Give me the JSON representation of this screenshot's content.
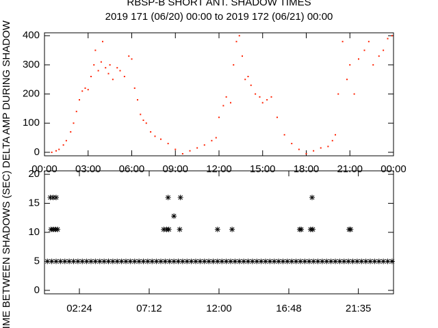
{
  "chart_data": [
    {
      "type": "scatter",
      "title": "RBSP-B SHORT ANT. SHADOW TIMES",
      "subtitle": "2019 171 (06/20) 00:00 to 2019 172 (06/21) 00:00",
      "y_label": "DELTA AMP DURING SHADOW",
      "color": "#ff2000",
      "x": [
        0.5,
        0.8,
        1.0,
        1.3,
        1.5,
        1.8,
        2.0,
        2.2,
        2.4,
        2.6,
        2.8,
        3.0,
        3.2,
        3.4,
        3.5,
        3.7,
        3.9,
        4.0,
        4.2,
        4.4,
        4.5,
        4.7,
        5.0,
        5.2,
        5.5,
        5.8,
        6.0,
        6.2,
        6.4,
        6.6,
        6.8,
        7.0,
        7.3,
        7.6,
        8.0,
        8.5,
        9.0,
        9.5,
        10.0,
        10.5,
        11.0,
        11.5,
        11.8,
        12.0,
        12.3,
        12.5,
        12.8,
        13.0,
        13.2,
        13.4,
        13.6,
        13.8,
        14.0,
        14.2,
        14.5,
        14.8,
        15.0,
        15.3,
        15.6,
        16.0,
        16.5,
        17.0,
        17.5,
        18.0,
        18.5,
        19.0,
        19.5,
        19.8,
        20.0,
        20.2,
        20.5,
        20.8,
        21.0,
        21.3,
        21.6,
        22.0,
        22.3,
        22.6,
        23.0,
        23.3,
        23.6,
        23.9
      ],
      "values": [
        0,
        5,
        10,
        25,
        40,
        70,
        100,
        140,
        180,
        210,
        220,
        215,
        260,
        300,
        350,
        280,
        310,
        380,
        290,
        270,
        300,
        250,
        290,
        280,
        260,
        330,
        320,
        220,
        180,
        130,
        110,
        100,
        70,
        55,
        45,
        30,
        10,
        -5,
        5,
        15,
        25,
        40,
        50,
        120,
        160,
        190,
        170,
        300,
        380,
        400,
        330,
        250,
        260,
        230,
        200,
        190,
        170,
        180,
        190,
        120,
        60,
        30,
        10,
        -5,
        5,
        15,
        20,
        40,
        60,
        200,
        380,
        250,
        300,
        200,
        320,
        350,
        380,
        300,
        330,
        350,
        390,
        400
      ],
      "xlim": [
        0,
        24
      ],
      "ylim": [
        -12,
        410
      ],
      "xticks": [
        {
          "value": 0,
          "label": "00:00"
        },
        {
          "value": 3,
          "label": "03:00"
        },
        {
          "value": 6,
          "label": "06:00"
        },
        {
          "value": 9,
          "label": "09:00"
        },
        {
          "value": 12,
          "label": "12:00"
        },
        {
          "value": 15,
          "label": "15:00"
        },
        {
          "value": 18,
          "label": "18:00"
        },
        {
          "value": 21,
          "label": "21:00"
        },
        {
          "value": 24,
          "label": "00:00"
        }
      ],
      "yticks": [
        0,
        100,
        200,
        300,
        400
      ]
    },
    {
      "type": "scatter",
      "y_label": "TIME BETWEEN SHADOWS (SEC)",
      "color": "#000000",
      "x": [
        0.2,
        0.5,
        0.8,
        1.1,
        1.4,
        1.7,
        2,
        2.3,
        2.6,
        2.9,
        3.2,
        3.5,
        3.8,
        4.1,
        4.4,
        4.7,
        5,
        5.3,
        5.6,
        5.9,
        6.2,
        6.5,
        6.8,
        7.1,
        7.4,
        7.7,
        8,
        8.3,
        8.6,
        8.9,
        9.2,
        9.5,
        9.8,
        10.1,
        10.4,
        10.7,
        11,
        11.3,
        11.6,
        11.9,
        12.2,
        12.5,
        12.8,
        13.1,
        13.4,
        13.7,
        14,
        14.3,
        14.6,
        14.9,
        15.2,
        15.5,
        15.8,
        16.1,
        16.4,
        16.7,
        17,
        17.3,
        17.6,
        17.9,
        18.2,
        18.5,
        18.8,
        19.1,
        19.4,
        19.7,
        20,
        20.3,
        20.6,
        20.9,
        21.2,
        21.5,
        21.8,
        22.1,
        22.4,
        22.7,
        23,
        23.3,
        23.6,
        23.9,
        0.45,
        0.6,
        0.75,
        0.9,
        0.4,
        0.6,
        0.8,
        8.2,
        8.4,
        8.55,
        8.5,
        8.9,
        9.3,
        9.35,
        11.9,
        12.9,
        17.55,
        17.65,
        18.3,
        18.45,
        18.4,
        20.95,
        21.05
      ],
      "values": [
        5,
        5,
        5,
        5,
        5,
        5,
        5,
        5,
        5,
        5,
        5,
        5,
        5,
        5,
        5,
        5,
        5,
        5,
        5,
        5,
        5,
        5,
        5,
        5,
        5,
        5,
        5,
        5,
        5,
        5,
        5,
        5,
        5,
        5,
        5,
        5,
        5,
        5,
        5,
        5,
        5,
        5,
        5,
        5,
        5,
        5,
        5,
        5,
        5,
        5,
        5,
        5,
        5,
        5,
        5,
        5,
        5,
        5,
        5,
        5,
        5,
        5,
        5,
        5,
        5,
        5,
        5,
        5,
        5,
        5,
        5,
        5,
        5,
        5,
        5,
        5,
        5,
        5,
        5,
        5,
        10.5,
        10.5,
        10.5,
        10.5,
        16,
        16,
        16,
        10.5,
        10.5,
        10.5,
        16,
        12.8,
        10.5,
        16,
        10.5,
        10.5,
        10.5,
        10.5,
        10.5,
        10.5,
        16,
        10.5,
        10.5
      ],
      "xlim": [
        0,
        24
      ],
      "ylim": [
        -0.6,
        20.6
      ],
      "xticks": [
        {
          "value": 2.4,
          "label": "02:24"
        },
        {
          "value": 7.2,
          "label": "07:12"
        },
        {
          "value": 12,
          "label": "12:00"
        },
        {
          "value": 16.8,
          "label": "16:48"
        },
        {
          "value": 21.583,
          "label": "21:35"
        }
      ],
      "yticks": [
        0,
        5,
        10,
        15,
        20
      ]
    }
  ]
}
